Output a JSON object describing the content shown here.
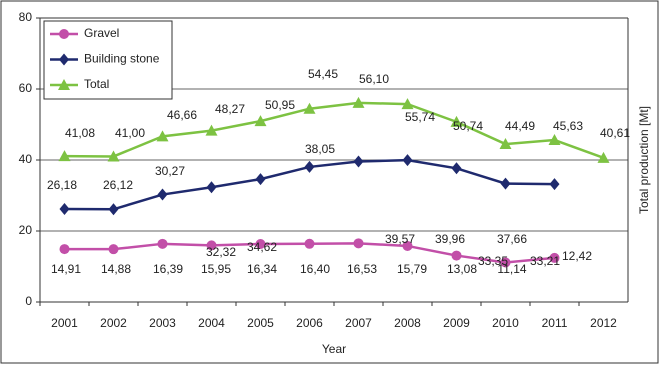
{
  "chart_data": {
    "type": "line",
    "x_label": "Year",
    "y_label": "Total production [Mt]",
    "categories": [
      "2001",
      "2002",
      "2003",
      "2004",
      "2005",
      "2006",
      "2007",
      "2008",
      "2009",
      "2010",
      "2011",
      "2012"
    ],
    "series": [
      {
        "name": "Gravel",
        "color": "#c24fa8",
        "marker": "circle",
        "values": [
          14.91,
          14.88,
          16.39,
          15.95,
          16.34,
          16.4,
          16.53,
          15.79,
          13.08,
          11.14,
          12.42,
          null
        ],
        "value_labels": [
          "14,91",
          "14,88",
          "16,39",
          "15,95",
          "16,34",
          "16,40",
          "16,53",
          "15,79",
          "13,08",
          "11,14",
          "12,42",
          null
        ]
      },
      {
        "name": "Building stone",
        "color": "#1f2a6e",
        "marker": "diamond",
        "values": [
          26.18,
          26.12,
          30.27,
          32.32,
          34.62,
          38.05,
          39.57,
          39.96,
          37.66,
          33.35,
          33.21,
          null
        ],
        "value_labels": [
          "26,18",
          "26,12",
          "30,27",
          "32,32",
          "34,62",
          "38,05",
          "39,57",
          "39,96",
          "37,66",
          "33,35",
          "33,21",
          null
        ]
      },
      {
        "name": "Total",
        "color": "#7dc242",
        "marker": "triangle",
        "values": [
          41.08,
          41.0,
          46.66,
          48.27,
          50.95,
          54.45,
          56.1,
          55.74,
          50.74,
          44.49,
          45.63,
          40.61
        ],
        "value_labels": [
          "41,08",
          "41,00",
          "46,66",
          "48,27",
          "50,95",
          "54,45",
          "56,10",
          "55,74",
          "50,74",
          "44,49",
          "45,63",
          "40,61"
        ]
      }
    ],
    "ylim": [
      0,
      80
    ],
    "yticks": [
      0,
      20,
      40,
      60,
      80
    ],
    "grid": true,
    "legend": "upper left"
  }
}
